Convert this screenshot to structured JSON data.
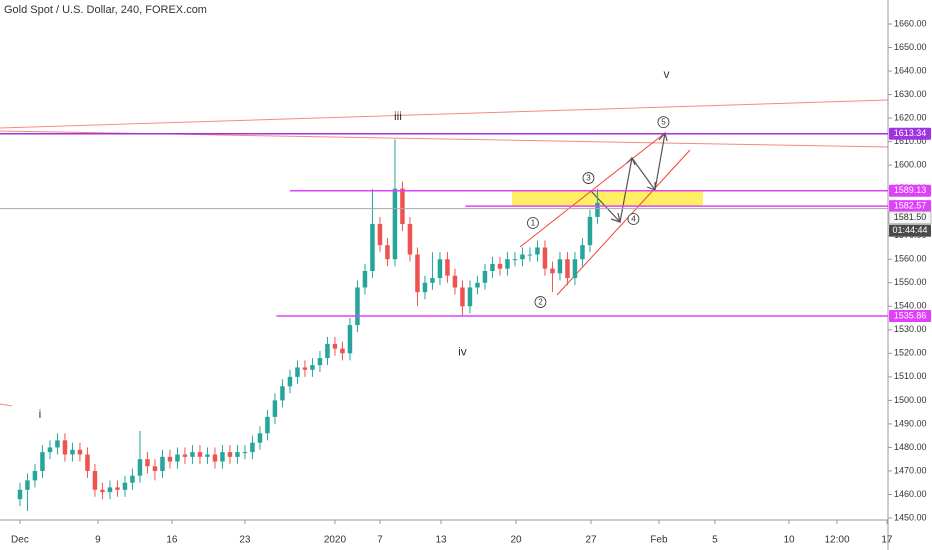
{
  "chart_data": {
    "type": "candlestick",
    "title": "Gold Spot / U.S. Dollar, 240, FOREX.com",
    "xlim": [
      -1.33,
      57.87
    ],
    "ylim": [
      1449.15,
      1670.2
    ],
    "xticks": [
      {
        "value": 0,
        "label": "Dec"
      },
      {
        "value": 5.2,
        "label": "9"
      },
      {
        "value": 10.13,
        "label": "16"
      },
      {
        "value": 15,
        "label": "23"
      },
      {
        "value": 21,
        "label": "2020"
      },
      {
        "value": 24,
        "label": "7"
      },
      {
        "value": 28.07,
        "label": "13"
      },
      {
        "value": 33.07,
        "label": "20"
      },
      {
        "value": 38.07,
        "label": "27"
      },
      {
        "value": 42.6,
        "label": "Feb"
      },
      {
        "value": 46.33,
        "label": "5"
      },
      {
        "value": 51.27,
        "label": "10"
      },
      {
        "value": 54.47,
        "label": "12:00"
      },
      {
        "value": 57.8,
        "label": "17"
      }
    ],
    "yticks": [
      {
        "value": 1450,
        "label": "1450.00"
      },
      {
        "value": 1460,
        "label": "1460.00"
      },
      {
        "value": 1470,
        "label": "1470.00"
      },
      {
        "value": 1480,
        "label": "1480.00"
      },
      {
        "value": 1490,
        "label": "1490.00"
      },
      {
        "value": 1500,
        "label": "1500.00"
      },
      {
        "value": 1510,
        "label": "1510.00"
      },
      {
        "value": 1520,
        "label": "1520.00"
      },
      {
        "value": 1530,
        "label": "1530.00"
      },
      {
        "value": 1540,
        "label": "1540.00"
      },
      {
        "value": 1550,
        "label": "1550.00"
      },
      {
        "value": 1560,
        "label": "1560.00"
      },
      {
        "value": 1570,
        "label": "1570.00"
      },
      {
        "value": 1580,
        "label": "1580.00"
      },
      {
        "value": 1590,
        "label": "1590.00"
      },
      {
        "value": 1600,
        "label": "1600.00"
      },
      {
        "value": 1610,
        "label": "1610.00"
      },
      {
        "value": 1620,
        "label": "1620.00"
      },
      {
        "value": 1630,
        "label": "1630.00"
      },
      {
        "value": 1640,
        "label": "1640.00"
      },
      {
        "value": 1650,
        "label": "1650.00"
      },
      {
        "value": 1660,
        "label": "1660.00"
      }
    ],
    "grid": false,
    "up_color": "#26a69a",
    "down_color": "#ef5350",
    "x": [
      0,
      0.5,
      1,
      1.5,
      2,
      2.5,
      3,
      3.5,
      4,
      4.5,
      5,
      5.5,
      6,
      6.5,
      7,
      7.5,
      8,
      8.5,
      9,
      9.5,
      10,
      10.5,
      11,
      11.5,
      12,
      12.5,
      13,
      13.5,
      14,
      14.5,
      15,
      15.5,
      16,
      16.5,
      17,
      17.5,
      18,
      18.5,
      19,
      19.5,
      20,
      20.5,
      21,
      21.5,
      22,
      22.5,
      23,
      23.5,
      24,
      24.5,
      25,
      25.5,
      26,
      26.5,
      27,
      27.5,
      28,
      28.5,
      29,
      29.5,
      30,
      30.5,
      31,
      31.5,
      32,
      32.5,
      33,
      33.5,
      34,
      34.5,
      35,
      35.5,
      36,
      36.5,
      37,
      37.5,
      38,
      38.5
    ],
    "open": [
      1458,
      1462,
      1466,
      1470,
      1478,
      1480,
      1483,
      1477,
      1479,
      1477,
      1470,
      1462,
      1461,
      1463,
      1462,
      1465,
      1468,
      1475,
      1472,
      1470,
      1476,
      1474,
      1477,
      1476,
      1478,
      1476,
      1477,
      1474,
      1478,
      1476,
      1478,
      1478,
      1482,
      1486,
      1493,
      1500,
      1506,
      1510,
      1514,
      1513,
      1515,
      1518,
      1524,
      1522,
      1520,
      1532,
      1548,
      1555,
      1575,
      1566,
      1560,
      1590,
      1575,
      1562,
      1546,
      1550,
      1552,
      1560,
      1553,
      1548,
      1540,
      1548,
      1550,
      1555,
      1558,
      1556,
      1560,
      1560,
      1562,
      1562,
      1565,
      1556,
      1554,
      1560,
      1552,
      1560,
      1566,
      1578
    ],
    "high": [
      1465,
      1469,
      1473,
      1481,
      1483,
      1486,
      1486,
      1482,
      1482,
      1480,
      1473,
      1465,
      1466,
      1466,
      1468,
      1471,
      1487,
      1478,
      1475,
      1479,
      1479,
      1480,
      1480,
      1481,
      1481,
      1480,
      1480,
      1481,
      1481,
      1481,
      1481,
      1485,
      1489,
      1496,
      1503,
      1509,
      1513,
      1517,
      1517,
      1518,
      1521,
      1527,
      1527,
      1525,
      1535,
      1551,
      1558,
      1590,
      1578,
      1569,
      1611,
      1593,
      1578,
      1565,
      1553,
      1563,
      1563,
      1563,
      1556,
      1551,
      1551,
      1553,
      1558,
      1561,
      1561,
      1563,
      1563,
      1565,
      1565,
      1568,
      1568,
      1559,
      1563,
      1563,
      1563,
      1569,
      1581,
      1590
    ],
    "low": [
      1455,
      1453,
      1463,
      1467,
      1475,
      1477,
      1474,
      1474,
      1474,
      1467,
      1459,
      1458,
      1458,
      1459,
      1459,
      1462,
      1465,
      1469,
      1466,
      1467,
      1471,
      1471,
      1473,
      1473,
      1473,
      1473,
      1471,
      1471,
      1473,
      1473,
      1475,
      1475,
      1479,
      1483,
      1490,
      1497,
      1503,
      1507,
      1510,
      1510,
      1512,
      1515,
      1519,
      1517,
      1517,
      1529,
      1545,
      1552,
      1563,
      1557,
      1557,
      1572,
      1559,
      1540,
      1543,
      1547,
      1549,
      1550,
      1545,
      1536,
      1537,
      1545,
      1547,
      1552,
      1553,
      1553,
      1557,
      1557,
      1559,
      1559,
      1553,
      1546,
      1551,
      1549,
      1549,
      1557,
      1563,
      1575
    ],
    "close": [
      1462,
      1466,
      1470,
      1478,
      1480,
      1483,
      1477,
      1479,
      1477,
      1470,
      1462,
      1461,
      1463,
      1462,
      1465,
      1468,
      1475,
      1472,
      1470,
      1476,
      1474,
      1477,
      1476,
      1478,
      1476,
      1477,
      1474,
      1478,
      1476,
      1478,
      1478,
      1482,
      1486,
      1493,
      1500,
      1506,
      1510,
      1514,
      1513,
      1515,
      1518,
      1524,
      1522,
      1520,
      1532,
      1548,
      1555,
      1575,
      1566,
      1560,
      1590,
      1575,
      1562,
      1546,
      1550,
      1552,
      1560,
      1553,
      1548,
      1540,
      1548,
      1550,
      1555,
      1558,
      1556,
      1560,
      1560,
      1562,
      1562,
      1565,
      1556,
      1554,
      1560,
      1552,
      1560,
      1566,
      1578,
      1584
    ],
    "price_lines": [
      {
        "value": 1613.34,
        "x_start": -1.33,
        "color": "#a033e0"
      },
      {
        "value": 1589.13,
        "x_start": 18,
        "color": "#e040fb"
      },
      {
        "value": 1582.57,
        "x_start": 29.7,
        "color": "#e040fb"
      },
      {
        "value": 1535.86,
        "x_start": 17.1,
        "color": "#e040fb"
      }
    ],
    "last_price": {
      "value": 1581.5,
      "label": "1581.50",
      "countdown": "01:44:44"
    },
    "annotations": [
      {
        "text": "iii",
        "x": 25.2,
        "y": 1620.5
      },
      {
        "text": "iv",
        "x": 29.5,
        "y": 1520.5
      },
      {
        "text": "v",
        "x": 43.1,
        "y": 1638.3
      },
      {
        "text": "i",
        "x": 1.33,
        "y": 1493.8
      },
      {
        "text": "1",
        "x": 34.2,
        "y": 1575.4,
        "circled": true
      },
      {
        "text": "2",
        "x": 34.7,
        "y": 1541.8,
        "circled": true
      },
      {
        "text": "3",
        "x": 37.9,
        "y": 1594.5,
        "circled": true
      },
      {
        "text": "4",
        "x": 40.9,
        "y": 1577.1,
        "circled": true
      },
      {
        "text": "5",
        "x": 42.9,
        "y": 1618.3,
        "circled": true
      }
    ]
  }
}
